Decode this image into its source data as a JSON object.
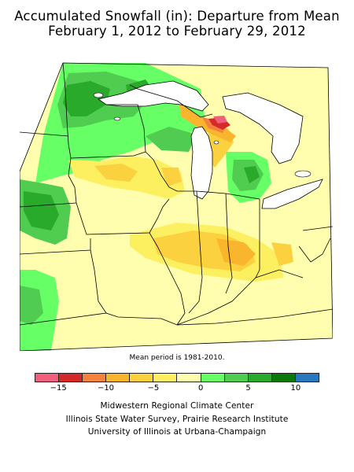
{
  "title_line1": "Accumulated Snowfall (in): Departure from Mean",
  "title_line2": "February 1, 2012 to February 29, 2012",
  "mean_note": "Mean period is 1981-2010.",
  "legend": {
    "colors": [
      "#f0607c",
      "#d42a2a",
      "#f5823c",
      "#f9b52e",
      "#fbd140",
      "#fdf060",
      "#fefeae",
      "#66ff66",
      "#50cc50",
      "#2aaa2a",
      "#0a7a0a",
      "#2878be"
    ],
    "ticks": [
      {
        "label": "−15",
        "value": -15
      },
      {
        "label": "−10",
        "value": -10
      },
      {
        "label": "−5",
        "value": -5
      },
      {
        "label": "0",
        "value": 0
      },
      {
        "label": "5",
        "value": 5
      },
      {
        "label": "10",
        "value": 10
      }
    ]
  },
  "credits": {
    "line1": "Midwestern Regional Climate Center",
    "line2": "Illinois State Water Survey, Prairie Research Institute",
    "line3": "University of Illinois at Urbana-Champaign"
  }
}
